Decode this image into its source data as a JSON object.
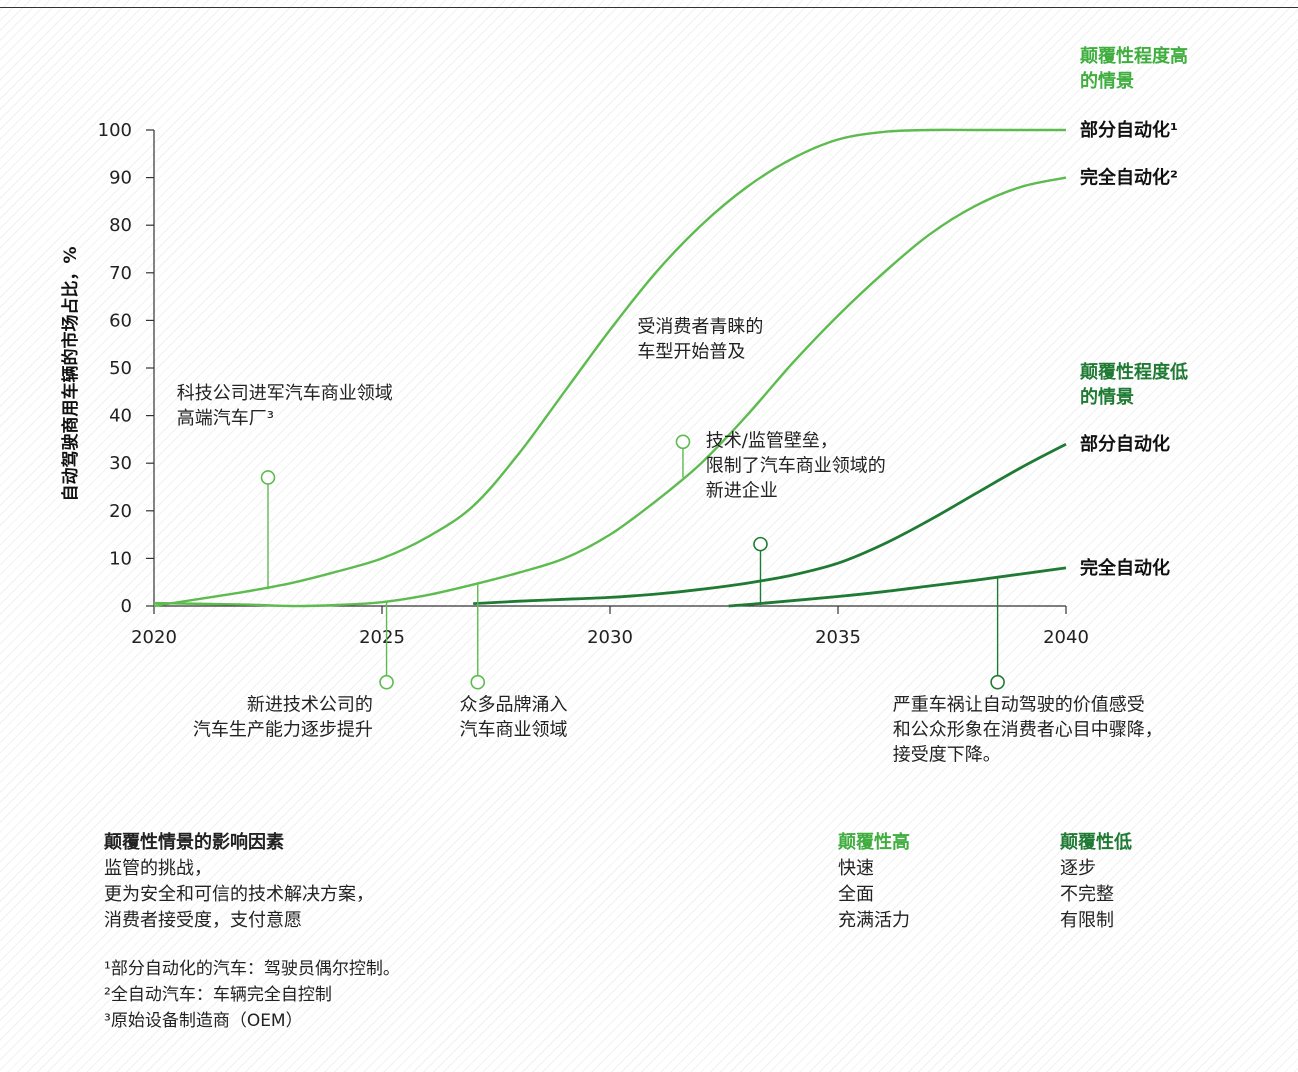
{
  "colors": {
    "high": "#5dbb4f",
    "low": "#1f7a34",
    "axis": "#333333",
    "text": "#222222",
    "head_high": "#3fae3f"
  },
  "chart_data": {
    "type": "line",
    "ylabel": "自动驾驶商用车辆的市场占比，%",
    "xlim": [
      2020,
      2040
    ],
    "ylim": [
      0,
      100
    ],
    "xticks": [
      2020,
      2025,
      2030,
      2035,
      2040
    ],
    "yticks": [
      0,
      10,
      20,
      30,
      40,
      50,
      60,
      70,
      80,
      90,
      100
    ],
    "scenario_high_title": [
      "颠覆性程度高",
      "的情景"
    ],
    "scenario_low_title": [
      "颠覆性程度低",
      "的情景"
    ],
    "series": [
      {
        "name": "部分自动化¹",
        "group": "high",
        "points": [
          [
            2020,
            0
          ],
          [
            2021,
            1.5
          ],
          [
            2022,
            3
          ],
          [
            2023,
            4.8
          ],
          [
            2024,
            7.2
          ],
          [
            2025,
            10
          ],
          [
            2026,
            14.5
          ],
          [
            2027,
            21
          ],
          [
            2028,
            32
          ],
          [
            2029,
            45
          ],
          [
            2030,
            58
          ],
          [
            2031,
            70
          ],
          [
            2032,
            80
          ],
          [
            2033,
            88
          ],
          [
            2034,
            94
          ],
          [
            2035,
            98
          ],
          [
            2036,
            99.6
          ],
          [
            2037,
            100
          ],
          [
            2038,
            100
          ],
          [
            2039,
            100
          ],
          [
            2040,
            100
          ]
        ]
      },
      {
        "name": "完全自动化²",
        "group": "high",
        "points": [
          [
            2020,
            0.6
          ],
          [
            2022,
            0.3
          ],
          [
            2023,
            0
          ],
          [
            2024,
            0.2
          ],
          [
            2025,
            0.8
          ],
          [
            2026,
            2.3
          ],
          [
            2027,
            4.5
          ],
          [
            2028,
            7
          ],
          [
            2029,
            10
          ],
          [
            2030,
            15
          ],
          [
            2031,
            22
          ],
          [
            2032,
            30
          ],
          [
            2033,
            40
          ],
          [
            2034,
            51
          ],
          [
            2035,
            61
          ],
          [
            2036,
            70
          ],
          [
            2037,
            78
          ],
          [
            2038,
            84
          ],
          [
            2039,
            88
          ],
          [
            2040,
            90
          ]
        ]
      },
      {
        "name": "部分自动化",
        "group": "low",
        "points": [
          [
            2027,
            0.5
          ],
          [
            2028,
            1
          ],
          [
            2029,
            1.4
          ],
          [
            2030,
            1.8
          ],
          [
            2031,
            2.5
          ],
          [
            2032,
            3.5
          ],
          [
            2033,
            4.8
          ],
          [
            2034,
            6.5
          ],
          [
            2035,
            9
          ],
          [
            2036,
            13
          ],
          [
            2037,
            18
          ],
          [
            2038,
            23.5
          ],
          [
            2039,
            29
          ],
          [
            2040,
            34
          ]
        ]
      },
      {
        "name": "完全自动化",
        "group": "low",
        "points": [
          [
            2032.6,
            0
          ],
          [
            2033.5,
            0.7
          ],
          [
            2035,
            2
          ],
          [
            2036,
            3
          ],
          [
            2037,
            4.2
          ],
          [
            2038,
            5.4
          ],
          [
            2039,
            6.7
          ],
          [
            2040,
            8
          ]
        ]
      }
    ],
    "annotations": [
      {
        "lines": [
          "科技公司进军汽车商业领域",
          "高端汽车厂³"
        ],
        "x": 2022.5,
        "line_from": 3.5,
        "line_to": 27,
        "text_at": [
          2020.5,
          43.5
        ],
        "anchor": "start",
        "group": "high"
      },
      {
        "lines": [
          "新进技术公司的",
          "汽车生产能力逐步提升"
        ],
        "x": 2025.1,
        "line_from": 0.8,
        "line_to": -16,
        "text_at": [
          2024.8,
          -22
        ],
        "anchor": "end",
        "group": "high"
      },
      {
        "lines": [
          "众多品牌涌入",
          "汽车商业领域"
        ],
        "x": 2027.1,
        "line_from": 4.5,
        "line_to": -16,
        "text_at": [
          2026.7,
          -22
        ],
        "anchor": "start",
        "group": "high"
      },
      {
        "lines": [
          "受消费者青睐的",
          "车型开始普及"
        ],
        "x": 2031.6,
        "line_from": 27,
        "line_to": 34.5,
        "text_at": [
          2030.6,
          57.5
        ],
        "anchor": "start",
        "group": "high"
      },
      {
        "lines": [
          "技术/监管壁垒，",
          "限制了汽车商业领域的",
          "新进企业"
        ],
        "x": 2033.3,
        "line_from": 0.2,
        "line_to": 13,
        "text_at": [
          2032.1,
          33.5
        ],
        "anchor": "start",
        "group": "low"
      },
      {
        "lines": [
          "严重车祸让自动驾驶的价值感受",
          "和公众形象在消费者心目中骤降，",
          "接受度下降。"
        ],
        "x": 2038.5,
        "line_from": 6.2,
        "line_to": -16,
        "text_at": [
          2036.2,
          -22
        ],
        "anchor": "start",
        "group": "low"
      }
    ]
  },
  "factors": {
    "title": "颠覆性情景的影响因素",
    "items": [
      "监管的挑战，",
      "更为安全和可信的技术解决方案，",
      "消费者接受度，支付意愿"
    ]
  },
  "legend_high": {
    "title": "颠覆性高",
    "items": [
      "快速",
      "全面",
      "充满活力"
    ]
  },
  "legend_low": {
    "title": "颠覆性低",
    "items": [
      "逐步",
      "不完整",
      "有限制"
    ]
  },
  "footnotes": [
    "¹部分自动化的汽车：驾驶员偶尔控制。",
    "²全自动汽车：车辆完全自控制",
    "³原始设备制造商（OEM）"
  ]
}
